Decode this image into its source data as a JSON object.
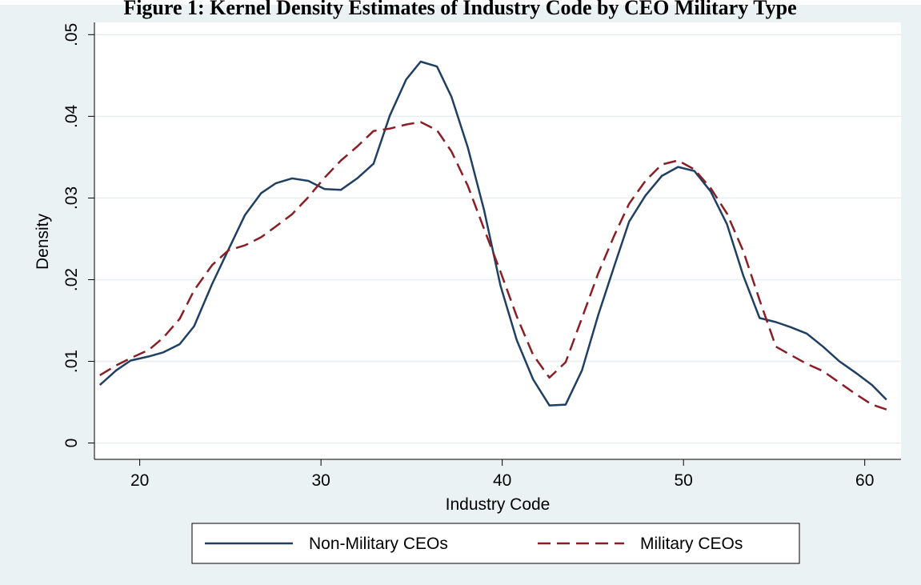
{
  "chart_data": {
    "type": "line",
    "title": "Figure 1: Kernel Density Estimates of Industry Code by CEO Military Type",
    "xlabel": "Industry Code",
    "ylabel": "Density",
    "xlim": [
      17.5,
      62
    ],
    "ylim": [
      -0.002,
      0.0515
    ],
    "x_ticks": [
      20,
      30,
      40,
      50,
      60
    ],
    "x_tick_labels": [
      "20",
      "30",
      "40",
      "50",
      "60"
    ],
    "y_ticks": [
      0,
      0.01,
      0.02,
      0.03,
      0.04,
      0.05
    ],
    "y_tick_labels": [
      "0",
      ".01",
      ".02",
      ".03",
      ".04",
      ".05"
    ],
    "grid": true,
    "legend_position": "bottom",
    "series": [
      {
        "name": "Non-Military CEOs",
        "style": "solid",
        "color": "#1f3f63",
        "x": [
          17.8,
          18.7,
          19.5,
          20.5,
          21.3,
          22.2,
          23.0,
          24.0,
          24.9,
          25.8,
          26.7,
          27.5,
          28.4,
          29.3,
          30.2,
          31.1,
          32.0,
          32.9,
          33.8,
          34.7,
          35.5,
          36.4,
          37.2,
          38.1,
          39.0,
          39.9,
          40.8,
          41.7,
          42.6,
          43.5,
          44.4,
          45.3,
          46.2,
          47.0,
          47.9,
          48.8,
          49.7,
          50.6,
          51.5,
          52.4,
          53.3,
          54.2,
          55.1,
          55.9,
          56.8,
          57.7,
          58.6,
          59.5,
          60.4,
          61.2
        ],
        "y": [
          0.0071,
          0.0089,
          0.0101,
          0.0106,
          0.0111,
          0.0121,
          0.0143,
          0.0195,
          0.0237,
          0.0279,
          0.0306,
          0.0318,
          0.0324,
          0.0321,
          0.0311,
          0.031,
          0.0324,
          0.0342,
          0.0401,
          0.0445,
          0.0467,
          0.0461,
          0.0424,
          0.0362,
          0.0285,
          0.0193,
          0.0126,
          0.0078,
          0.0046,
          0.0047,
          0.0089,
          0.0157,
          0.0218,
          0.0271,
          0.0303,
          0.0327,
          0.0338,
          0.0333,
          0.0308,
          0.0268,
          0.0205,
          0.0153,
          0.0148,
          0.0142,
          0.0134,
          0.0118,
          0.01,
          0.0086,
          0.0071,
          0.0053
        ]
      },
      {
        "name": "Military CEOs",
        "style": "dashed",
        "color": "#8b1e24",
        "x": [
          17.8,
          18.7,
          19.5,
          20.5,
          21.3,
          22.2,
          23.0,
          24.0,
          24.9,
          25.8,
          26.7,
          27.5,
          28.4,
          29.3,
          30.2,
          31.1,
          32.0,
          32.9,
          33.8,
          34.7,
          35.5,
          36.4,
          37.2,
          38.1,
          39.0,
          39.9,
          40.8,
          41.7,
          42.6,
          43.5,
          44.4,
          45.3,
          46.2,
          47.0,
          47.9,
          48.8,
          49.7,
          50.6,
          51.5,
          52.4,
          53.3,
          54.2,
          55.1,
          55.9,
          56.8,
          57.7,
          58.6,
          59.5,
          60.4,
          61.2
        ],
        "y": [
          0.0083,
          0.0095,
          0.0104,
          0.0114,
          0.0129,
          0.0152,
          0.0187,
          0.0218,
          0.0236,
          0.0242,
          0.0252,
          0.0265,
          0.028,
          0.0301,
          0.0325,
          0.0346,
          0.0363,
          0.0382,
          0.0385,
          0.039,
          0.0393,
          0.0383,
          0.0357,
          0.0315,
          0.0262,
          0.021,
          0.0155,
          0.0108,
          0.008,
          0.0099,
          0.0153,
          0.0208,
          0.0255,
          0.0293,
          0.0321,
          0.0341,
          0.0346,
          0.0335,
          0.0312,
          0.0281,
          0.0235,
          0.0175,
          0.0118,
          0.0108,
          0.0097,
          0.0088,
          0.0074,
          0.006,
          0.0047,
          0.0041
        ]
      }
    ]
  }
}
